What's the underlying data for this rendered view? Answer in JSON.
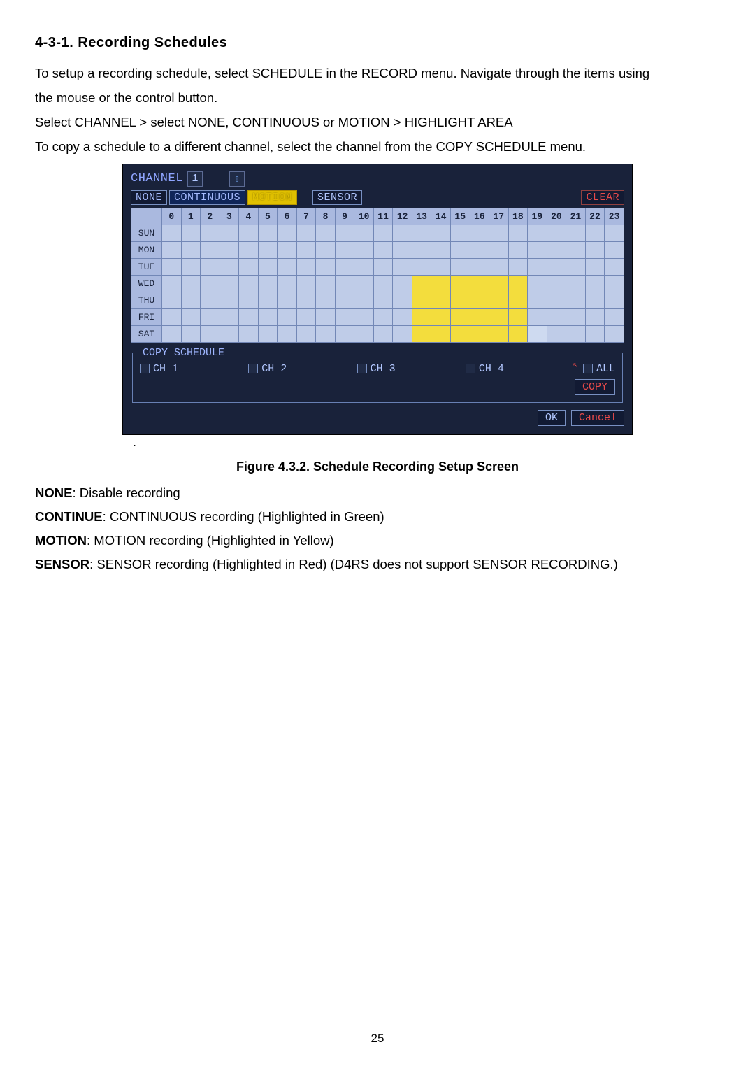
{
  "heading": "4-3-1.  Recording  Schedules",
  "intro": {
    "p1a": "To setup a recording schedule, select SCHEDULE in the RECORD menu. Navigate through the items using",
    "p1b": "the mouse or the control button.",
    "p2": "Select CHANNEL > select NONE, CONTINUOUS or MOTION > HIGHLIGHT AREA",
    "p3": "To copy a schedule to a different channel, select the channel from the COPY SCHEDULE menu."
  },
  "dvr": {
    "channelLabel": "CHANNEL",
    "channelValue": "1",
    "spinnerGlyph": "⇳",
    "modes": {
      "none": "NONE",
      "continuous": "CONTINUOUS",
      "motion": "MOTION",
      "sensor": "SENSOR",
      "clear": "CLEAR"
    },
    "hours": [
      "0",
      "1",
      "2",
      "3",
      "4",
      "5",
      "6",
      "7",
      "8",
      "9",
      "10",
      "11",
      "12",
      "13",
      "14",
      "15",
      "16",
      "17",
      "18",
      "19",
      "20",
      "21",
      "22",
      "23"
    ],
    "days": [
      "SUN",
      "MON",
      "TUE",
      "WED",
      "THU",
      "FRI",
      "SAT"
    ],
    "highlightRule": {
      "comment": "Cells WED..SAT (rows 3..6) at hours 13..18 are yellow; SAT hour 19 is lighter.",
      "yellow": {
        "rows": [
          3,
          4,
          5,
          6
        ],
        "cols": [
          13,
          14,
          15,
          16,
          17,
          18
        ]
      },
      "light": {
        "rows": [
          6
        ],
        "cols": [
          19
        ]
      }
    },
    "copy": {
      "legend": "COPY SCHEDULE",
      "channels": [
        "CH 1",
        "CH 2",
        "CH 3",
        "CH 4",
        "ALL"
      ],
      "copy": "COPY"
    },
    "ok": "OK",
    "cancel": "Cancel"
  },
  "figCaption": "Figure 4.3.2. Schedule Recording Setup Screen",
  "defs": {
    "none": {
      "b": "NONE",
      "t": ": Disable recording"
    },
    "cont": {
      "b": "CONTINUE",
      "t": ": CONTINUOUS recording (Highlighted in Green)"
    },
    "mot": {
      "b": "MOTION",
      "t": ": MOTION recording (Highlighted in Yellow)"
    },
    "sen": {
      "b": "SENSOR",
      "t": ": SENSOR recording (Highlighted in Red) (D4RS does not support SENSOR RECORDING.)"
    }
  },
  "pageNumber": "25",
  "colors": {
    "dvrBg": "#19223a",
    "gridHeader": "#aab9df",
    "gridCell": "#bfcce8",
    "gridHighlight": "#f3dd3d",
    "accentText": "#b2c7ff",
    "redText": "#e84a4a"
  }
}
